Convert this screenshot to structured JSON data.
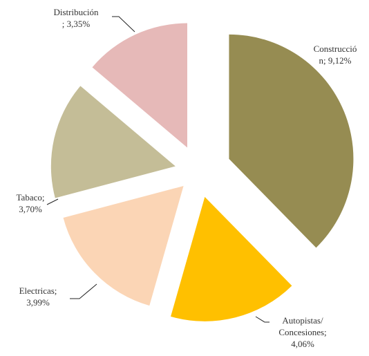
{
  "chart_data": {
    "type": "pie",
    "values": [
      9.12,
      4.06,
      3.99,
      3.7,
      3.35
    ],
    "value_labels": [
      [
        "Construcció",
        "n; 9,12%"
      ],
      [
        "Autopistas/",
        "Concesiones;",
        "4,06%"
      ],
      [
        "Electricas;",
        "3,99%"
      ],
      [
        "Tabaco;",
        "3,70%"
      ],
      [
        "Distribución",
        "; 3,35%"
      ]
    ],
    "colors": [
      "#968c52",
      "#ffc000",
      "#fbd5b5",
      "#c4bd97",
      "#e6b9b8"
    ]
  }
}
